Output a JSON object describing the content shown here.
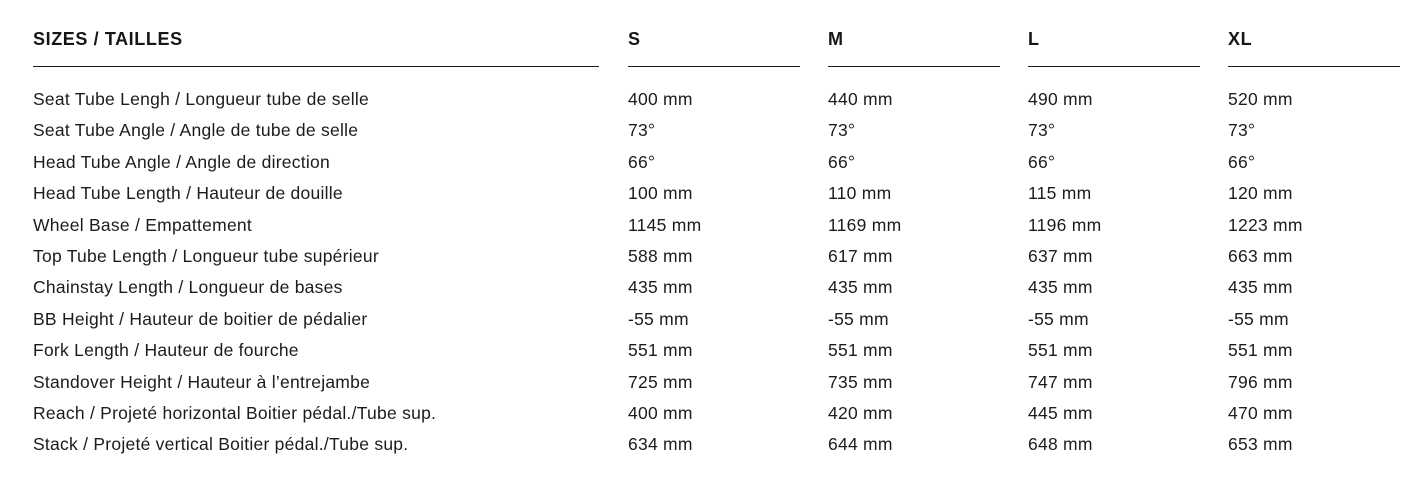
{
  "table": {
    "title": "SIZES / TAILLES",
    "size_columns": [
      "S",
      "M",
      "L",
      "XL"
    ],
    "rows": [
      {
        "label": "Seat Tube Lengh / Longueur tube de selle",
        "values": [
          "400 mm",
          "440 mm",
          "490 mm",
          "520 mm"
        ]
      },
      {
        "label": "Seat Tube Angle / Angle de tube de selle",
        "values": [
          "73°",
          "73°",
          "73°",
          "73°"
        ]
      },
      {
        "label": "Head Tube Angle / Angle de direction",
        "values": [
          "66°",
          "66°",
          "66°",
          "66°"
        ]
      },
      {
        "label": "Head Tube Length / Hauteur de douille",
        "values": [
          "100 mm",
          "110 mm",
          "115 mm",
          "120 mm"
        ]
      },
      {
        "label": "Wheel Base / Empattement",
        "values": [
          "1145 mm",
          "1169 mm",
          "1196 mm",
          "1223 mm"
        ]
      },
      {
        "label": "Top Tube Length / Longueur tube supérieur",
        "values": [
          "588 mm",
          "617 mm",
          "637 mm",
          "663 mm"
        ]
      },
      {
        "label": "Chainstay Length / Longueur de bases",
        "values": [
          "435 mm",
          "435 mm",
          "435 mm",
          "435 mm"
        ]
      },
      {
        "label": "BB Height / Hauteur de boitier de pédalier",
        "values": [
          "-55 mm",
          "-55 mm",
          "-55 mm",
          "-55 mm"
        ]
      },
      {
        "label": "Fork Length / Hauteur de fourche",
        "values": [
          "551 mm",
          "551 mm",
          "551 mm",
          "551 mm"
        ]
      },
      {
        "label": "Standover Height / Hauteur à l’entrejambe",
        "values": [
          "725 mm",
          "735 mm",
          "747 mm",
          "796 mm"
        ]
      },
      {
        "label": "Reach / Projeté horizontal Boitier pédal./Tube sup.",
        "values": [
          "400 mm",
          "420 mm",
          "445 mm",
          "470 mm"
        ]
      },
      {
        "label": "Stack / Projeté vertical Boitier pédal./Tube sup.",
        "values": [
          "634 mm",
          "644 mm",
          "648 mm",
          "653 mm"
        ]
      }
    ]
  },
  "colors": {
    "text": "#1c1c1c",
    "rule": "#1a1a1a",
    "background": "#ffffff"
  }
}
